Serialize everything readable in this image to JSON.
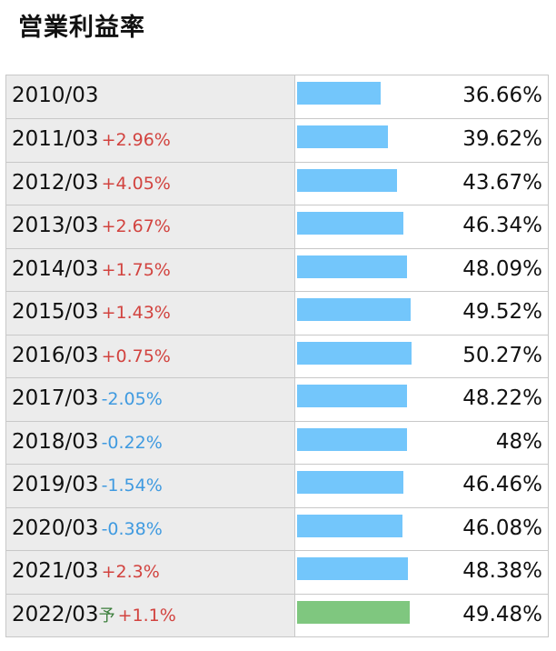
{
  "page": {
    "title": "営業利益率"
  },
  "colors": {
    "actual_bar": "#73c6fb",
    "forecast_bar": "#7fc77f",
    "positive_delta": "#d2433f",
    "negative_delta": "#3f9ae0",
    "forecast_mark": "#3a7d3a"
  },
  "chart_data": {
    "type": "bar",
    "title": "営業利益率",
    "categories": [
      "2010/03",
      "2011/03",
      "2012/03",
      "2013/03",
      "2014/03",
      "2015/03",
      "2016/03",
      "2017/03",
      "2018/03",
      "2019/03",
      "2020/03",
      "2021/03",
      "2022/03"
    ],
    "rows": [
      {
        "period": "2010/03",
        "mark": "",
        "change": "",
        "value": 36.66,
        "value_label": "36.66%",
        "forecast": false
      },
      {
        "period": "2011/03",
        "mark": "",
        "change": "+2.96%",
        "value": 39.62,
        "value_label": "39.62%",
        "forecast": false
      },
      {
        "period": "2012/03",
        "mark": "",
        "change": "+4.05%",
        "value": 43.67,
        "value_label": "43.67%",
        "forecast": false
      },
      {
        "period": "2013/03",
        "mark": "",
        "change": "+2.67%",
        "value": 46.34,
        "value_label": "46.34%",
        "forecast": false
      },
      {
        "period": "2014/03",
        "mark": "",
        "change": "+1.75%",
        "value": 48.09,
        "value_label": "48.09%",
        "forecast": false
      },
      {
        "period": "2015/03",
        "mark": "",
        "change": "+1.43%",
        "value": 49.52,
        "value_label": "49.52%",
        "forecast": false
      },
      {
        "period": "2016/03",
        "mark": "",
        "change": "+0.75%",
        "value": 50.27,
        "value_label": "50.27%",
        "forecast": false
      },
      {
        "period": "2017/03",
        "mark": "",
        "change": "-2.05%",
        "value": 48.22,
        "value_label": "48.22%",
        "forecast": false
      },
      {
        "period": "2018/03",
        "mark": "",
        "change": "-0.22%",
        "value": 48,
        "value_label": "48%",
        "forecast": false
      },
      {
        "period": "2019/03",
        "mark": "",
        "change": "-1.54%",
        "value": 46.46,
        "value_label": "46.46%",
        "forecast": false
      },
      {
        "period": "2020/03",
        "mark": "",
        "change": "-0.38%",
        "value": 46.08,
        "value_label": "46.08%",
        "forecast": false
      },
      {
        "period": "2021/03",
        "mark": "",
        "change": "+2.3%",
        "value": 48.38,
        "value_label": "48.38%",
        "forecast": false
      },
      {
        "period": "2022/03",
        "mark": "予",
        "change": "+1.1%",
        "value": 49.48,
        "value_label": "49.48%",
        "forecast": true
      }
    ],
    "xlabel": "",
    "ylabel": "",
    "xlim": [
      0,
      70
    ]
  }
}
